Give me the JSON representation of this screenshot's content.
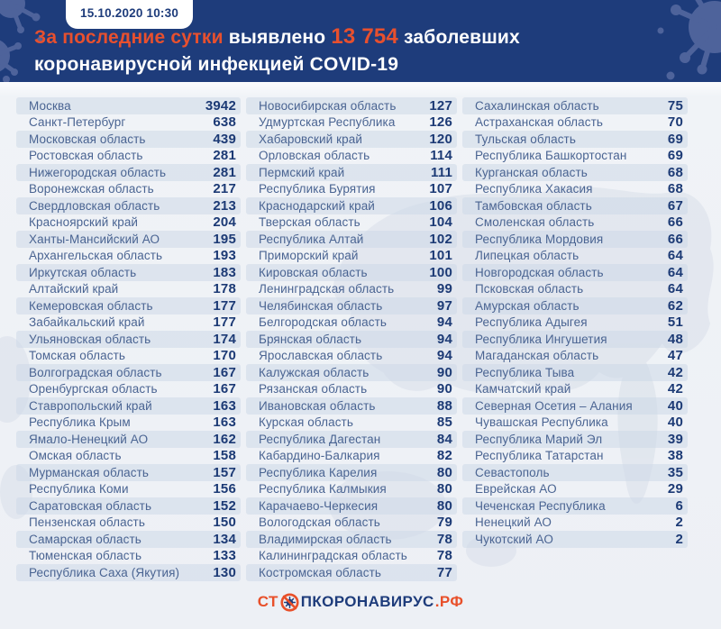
{
  "header": {
    "timestamp": "15.10.2020 10:30",
    "title": {
      "accent1": "За последние сутки",
      "plain1": "выявлено",
      "number": "13 754",
      "plain2": "заболевших",
      "line2": "коронавирусной инфекцией COVID-19"
    }
  },
  "chart_data": {
    "type": "table",
    "title": "За последние сутки выявлено 13 754 заболевших коронавирусной инфекцией COVID-19",
    "total_new_cases": 13754,
    "columns": [
      [
        {
          "region": "Москва",
          "value": 3942
        },
        {
          "region": "Санкт-Петербург",
          "value": 638
        },
        {
          "region": "Московская область",
          "value": 439
        },
        {
          "region": "Ростовская область",
          "value": 281
        },
        {
          "region": "Нижегородская область",
          "value": 281
        },
        {
          "region": "Воронежская область",
          "value": 217
        },
        {
          "region": "Свердловская область",
          "value": 213
        },
        {
          "region": "Красноярский край",
          "value": 204
        },
        {
          "region": "Ханты-Мансийский АО",
          "value": 195
        },
        {
          "region": "Архангельская область",
          "value": 193
        },
        {
          "region": "Иркутская область",
          "value": 183
        },
        {
          "region": "Алтайский край",
          "value": 178
        },
        {
          "region": "Кемеровская область",
          "value": 177
        },
        {
          "region": "Забайкальский край",
          "value": 177
        },
        {
          "region": "Ульяновская область",
          "value": 174
        },
        {
          "region": "Томская область",
          "value": 170
        },
        {
          "region": "Волгоградская область",
          "value": 167
        },
        {
          "region": "Оренбургская область",
          "value": 167
        },
        {
          "region": "Ставропольский край",
          "value": 163
        },
        {
          "region": "Республика Крым",
          "value": 163
        },
        {
          "region": "Ямало-Ненецкий АО",
          "value": 162
        },
        {
          "region": "Омская область",
          "value": 158
        },
        {
          "region": "Мурманская область",
          "value": 157
        },
        {
          "region": "Республика Коми",
          "value": 156
        },
        {
          "region": "Саратовская область",
          "value": 152
        },
        {
          "region": "Пензенская область",
          "value": 150
        },
        {
          "region": "Самарская область",
          "value": 134
        },
        {
          "region": "Тюменская область",
          "value": 133
        },
        {
          "region": "Республика Саха (Якутия)",
          "value": 130
        }
      ],
      [
        {
          "region": "Новосибирская область",
          "value": 127
        },
        {
          "region": "Удмуртская Республика",
          "value": 126
        },
        {
          "region": "Хабаровский край",
          "value": 120
        },
        {
          "region": "Орловская область",
          "value": 114
        },
        {
          "region": "Пермский край",
          "value": 111
        },
        {
          "region": "Республика Бурятия",
          "value": 107
        },
        {
          "region": "Краснодарский край",
          "value": 106
        },
        {
          "region": "Тверская область",
          "value": 104
        },
        {
          "region": "Республика Алтай",
          "value": 102
        },
        {
          "region": "Приморский край",
          "value": 101
        },
        {
          "region": "Кировская область",
          "value": 100
        },
        {
          "region": "Ленинградская область",
          "value": 99
        },
        {
          "region": "Челябинская область",
          "value": 97
        },
        {
          "region": "Белгородская область",
          "value": 94
        },
        {
          "region": "Брянская область",
          "value": 94
        },
        {
          "region": "Ярославская область",
          "value": 94
        },
        {
          "region": "Калужская область",
          "value": 90
        },
        {
          "region": "Рязанская область",
          "value": 90
        },
        {
          "region": "Ивановская область",
          "value": 88
        },
        {
          "region": "Курская область",
          "value": 85
        },
        {
          "region": "Республика Дагестан",
          "value": 84
        },
        {
          "region": "Кабардино-Балкария",
          "value": 82
        },
        {
          "region": "Республика Карелия",
          "value": 80
        },
        {
          "region": "Республика Калмыкия",
          "value": 80
        },
        {
          "region": "Карачаево-Черкесия",
          "value": 80
        },
        {
          "region": "Вологодская область",
          "value": 79
        },
        {
          "region": "Владимирская область",
          "value": 78
        },
        {
          "region": "Калининградская область",
          "value": 78
        },
        {
          "region": "Костромская область",
          "value": 77
        }
      ],
      [
        {
          "region": "Сахалинская область",
          "value": 75
        },
        {
          "region": "Астраханская область",
          "value": 70
        },
        {
          "region": "Тульская область",
          "value": 69
        },
        {
          "region": "Республика Башкортостан",
          "value": 69
        },
        {
          "region": "Курганская область",
          "value": 68
        },
        {
          "region": "Республика Хакасия",
          "value": 68
        },
        {
          "region": "Тамбовская область",
          "value": 67
        },
        {
          "region": "Смоленская область",
          "value": 66
        },
        {
          "region": "Республика Мордовия",
          "value": 66
        },
        {
          "region": "Липецкая область",
          "value": 64
        },
        {
          "region": "Новгородская область",
          "value": 64
        },
        {
          "region": "Псковская область",
          "value": 64
        },
        {
          "region": "Амурская область",
          "value": 62
        },
        {
          "region": "Республика Адыгея",
          "value": 51
        },
        {
          "region": "Республика Ингушетия",
          "value": 48
        },
        {
          "region": "Магаданская область",
          "value": 47
        },
        {
          "region": "Республика Тыва",
          "value": 42
        },
        {
          "region": "Камчатский край",
          "value": 42
        },
        {
          "region": "Северная Осетия – Алания",
          "value": 40
        },
        {
          "region": "Чувашская Республика",
          "value": 40
        },
        {
          "region": "Республика Марий Эл",
          "value": 39
        },
        {
          "region": "Республика Татарстан",
          "value": 38
        },
        {
          "region": "Севастополь",
          "value": 35
        },
        {
          "region": "Еврейская АО",
          "value": 29
        },
        {
          "region": "Чеченская Республика",
          "value": 6
        },
        {
          "region": "Ненецкий АО",
          "value": 2
        },
        {
          "region": "Чукотский АО",
          "value": 2
        }
      ]
    ]
  },
  "footer": {
    "logo": {
      "prefix": "СТ",
      "middle": "ПКОРОНАВИРУС",
      "suffix": ".РФ"
    }
  },
  "colors": {
    "header_bg": "#1e3c7b",
    "accent_orange": "#e8502e",
    "body_bg": "#eef1f5",
    "stripe": "#cedce8",
    "region_text": "#4a6492",
    "value_text": "#1c3a75"
  }
}
